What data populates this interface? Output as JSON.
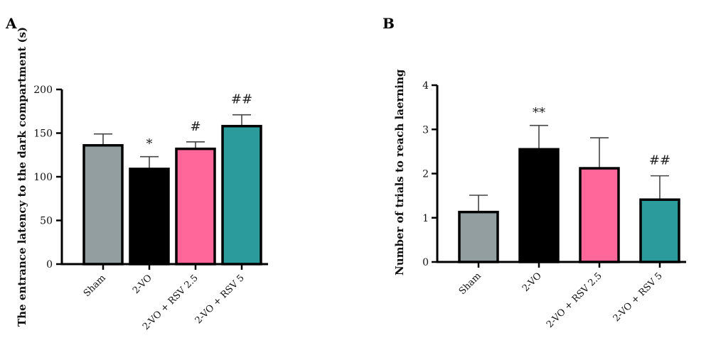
{
  "chart_data": [
    {
      "panel": "A",
      "type": "bar",
      "title": "",
      "xlabel": "",
      "ylabel": "The entrance latency to the dark compartment (s)",
      "ylim": [
        0,
        200
      ],
      "yticks": [
        0,
        50,
        100,
        150,
        200
      ],
      "categories": [
        "Sham",
        "2-VO",
        "2-VO + RSV 2.5",
        "2-VO + RSV 5"
      ],
      "values": [
        136,
        109,
        132,
        158
      ],
      "error_upper": [
        149,
        123,
        140,
        171
      ],
      "colors": [
        "#939ea1",
        "#000000",
        "#ff6699",
        "#2b9b9b"
      ],
      "annotations": [
        "",
        "*",
        "#",
        "##"
      ],
      "grid": false
    },
    {
      "panel": "B",
      "type": "bar",
      "title": "",
      "xlabel": "",
      "ylabel": "Number of trials to reach laerning",
      "ylim": [
        0,
        4
      ],
      "yticks": [
        0,
        1,
        2,
        3,
        4
      ],
      "categories": [
        "Sham",
        "2-VO",
        "2-VO + RSV 2.5",
        "2-VO + RSV 5"
      ],
      "values": [
        1.13,
        2.55,
        2.12,
        1.41
      ],
      "error_upper": [
        1.51,
        3.09,
        2.81,
        1.95
      ],
      "colors": [
        "#939ea1",
        "#000000",
        "#ff6699",
        "#2b9b9b"
      ],
      "annotations": [
        "",
        "**",
        "",
        "##"
      ],
      "grid": false
    }
  ]
}
